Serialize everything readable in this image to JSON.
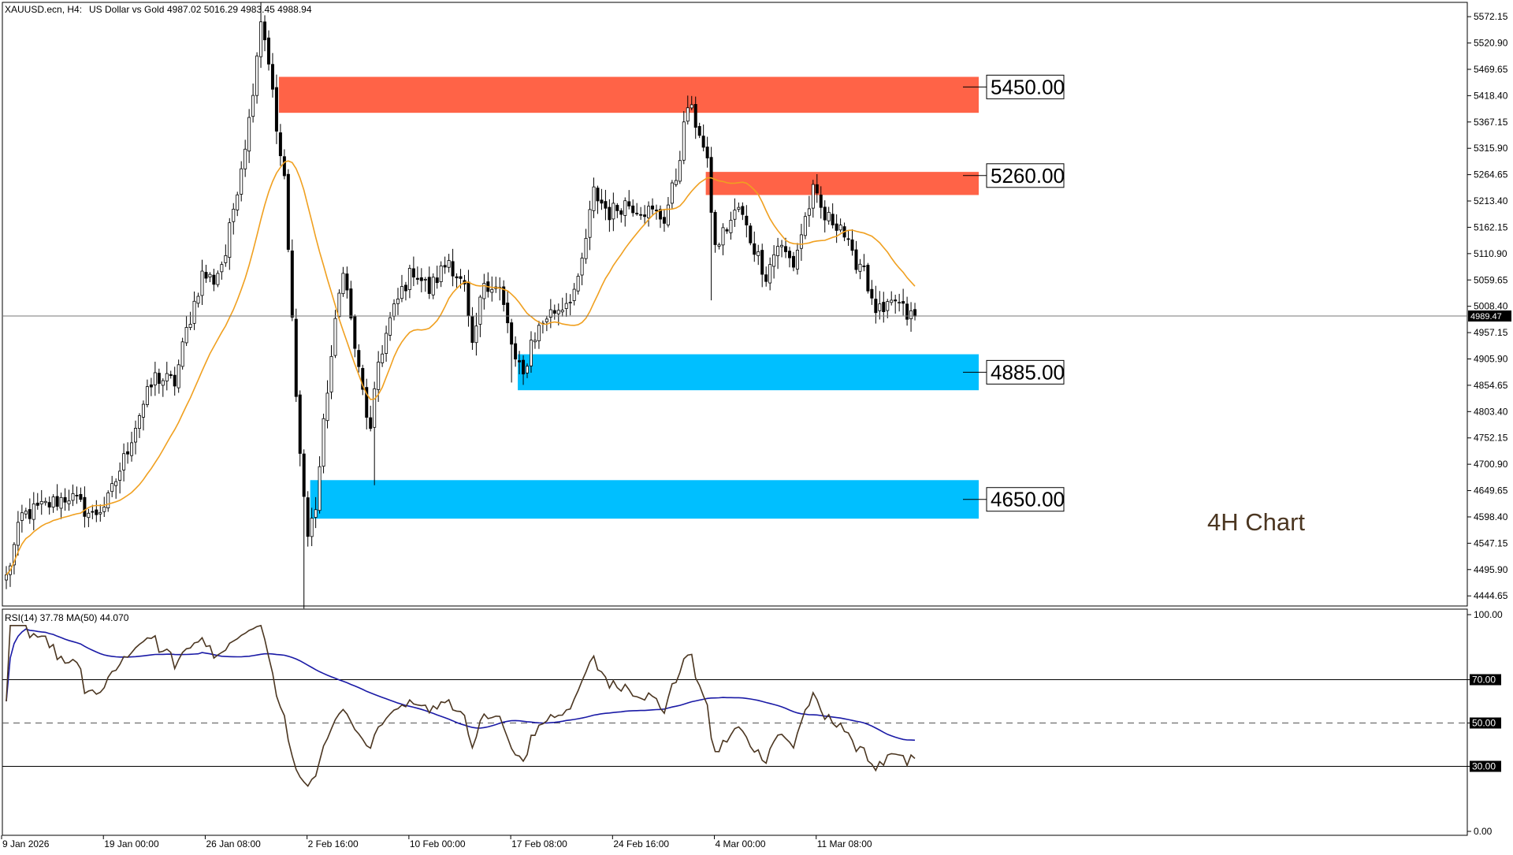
{
  "header": {
    "symbol": "XAUUSD.ecn, H4:",
    "description": "US Dollar vs Gold",
    "ohlc": "4987.02 5016.29 4983.45 4988.94"
  },
  "annotation": "4H Chart",
  "colors": {
    "bull_body": "#ffffff",
    "bear_body": "#000000",
    "ma_line": "#f0a020",
    "resistance_zone": "#ff6347",
    "support_zone": "#00bfff",
    "rsi_line": "#4b3621",
    "rsi_ma_line": "#1a1aa6"
  },
  "chart_data": [
    {
      "type": "candlestick",
      "title": "",
      "y_ticks": [
        "5572.15",
        "5520.90",
        "5469.65",
        "5418.40",
        "5367.15",
        "5315.90",
        "5264.65",
        "5213.40",
        "5162.15",
        "5110.90",
        "5059.65",
        "5008.40",
        "4957.15",
        "4905.90",
        "4854.65",
        "4803.40",
        "4752.15",
        "4700.90",
        "4649.65",
        "4598.40",
        "4547.15",
        "4495.90",
        "4444.65"
      ],
      "y_tick_values": [
        5572.15,
        5520.9,
        5469.65,
        5418.4,
        5367.15,
        5315.9,
        5264.65,
        5213.4,
        5162.15,
        5110.9,
        5059.65,
        5008.4,
        4957.15,
        4905.9,
        4854.65,
        4803.4,
        4752.15,
        4700.9,
        4649.65,
        4598.4,
        4547.15,
        4495.9,
        4444.65
      ],
      "ylim": [
        4425,
        5600
      ],
      "x_ticks": [
        "9 Jan 2026",
        "19 Jan 00:00",
        "26 Jan 08:00",
        "2 Feb 16:00",
        "10 Feb 00:00",
        "17 Feb 08:00",
        "24 Feb 16:00",
        "4 Mar 00:00",
        "11 Mar 08:00"
      ],
      "x_tick_index": [
        0,
        26,
        52,
        78,
        104,
        130,
        156,
        182,
        208
      ],
      "current_price": {
        "label": "4989.47",
        "value": 4989.47
      },
      "candle_count": 233,
      "moving_average_period": 20,
      "anchors": [
        [
          0,
          4480
        ],
        [
          4,
          4600
        ],
        [
          10,
          4620
        ],
        [
          16,
          4640
        ],
        [
          22,
          4600
        ],
        [
          26,
          4630
        ],
        [
          30,
          4710
        ],
        [
          34,
          4800
        ],
        [
          38,
          4870
        ],
        [
          43,
          4860
        ],
        [
          46,
          4960
        ],
        [
          50,
          5070
        ],
        [
          53,
          5060
        ],
        [
          56,
          5110
        ],
        [
          58,
          5200
        ],
        [
          62,
          5370
        ],
        [
          65,
          5570
        ],
        [
          67,
          5490
        ],
        [
          69,
          5350
        ],
        [
          71,
          5250
        ],
        [
          73,
          4980
        ],
        [
          75,
          4720
        ],
        [
          77,
          4560
        ],
        [
          79,
          4620
        ],
        [
          82,
          4850
        ],
        [
          86,
          5090
        ],
        [
          88,
          4980
        ],
        [
          90,
          4880
        ],
        [
          93,
          4760
        ],
        [
          95,
          4900
        ],
        [
          98,
          4980
        ],
        [
          101,
          5040
        ],
        [
          104,
          5080
        ],
        [
          108,
          5040
        ],
        [
          113,
          5100
        ],
        [
          117,
          5040
        ],
        [
          119,
          4920
        ],
        [
          122,
          5060
        ],
        [
          126,
          5040
        ],
        [
          130,
          4900
        ],
        [
          132,
          4870
        ],
        [
          134,
          4940
        ],
        [
          138,
          4990
        ],
        [
          142,
          5010
        ],
        [
          146,
          5050
        ],
        [
          150,
          5230
        ],
        [
          154,
          5190
        ],
        [
          158,
          5210
        ],
        [
          162,
          5200
        ],
        [
          168,
          5180
        ],
        [
          171,
          5260
        ],
        [
          174,
          5400
        ],
        [
          177,
          5350
        ],
        [
          179,
          5280
        ],
        [
          181,
          5120
        ],
        [
          183,
          5150
        ],
        [
          187,
          5200
        ],
        [
          190,
          5140
        ],
        [
          194,
          5070
        ],
        [
          197,
          5130
        ],
        [
          201,
          5090
        ],
        [
          204,
          5180
        ],
        [
          206,
          5230
        ],
        [
          209,
          5180
        ],
        [
          213,
          5170
        ],
        [
          216,
          5100
        ],
        [
          219,
          5090
        ],
        [
          221,
          5010
        ],
        [
          224,
          4990
        ],
        [
          227,
          5020
        ],
        [
          230,
          4990
        ],
        [
          232,
          4989
        ]
      ],
      "spikes": [
        {
          "i": 65,
          "value": 5600
        },
        {
          "i": 76,
          "value": 4420
        },
        {
          "i": 94,
          "value": 4660
        },
        {
          "i": 180,
          "value": 5020
        },
        {
          "i": 129,
          "value": 4860
        }
      ],
      "zones": [
        {
          "label": "5450.00",
          "from": 5385,
          "to": 5455,
          "color": "#ff6347",
          "start_index": 70
        },
        {
          "label": "5260.00",
          "from": 5225,
          "to": 5270,
          "color": "#ff6347",
          "start_index": 179
        },
        {
          "label": "4885.00",
          "from": 4845,
          "to": 4915,
          "color": "#00bfff",
          "start_index": 131
        },
        {
          "label": "4650.00",
          "from": 4595,
          "to": 4670,
          "color": "#00bfff",
          "start_index": 78
        }
      ]
    },
    {
      "type": "line",
      "title": "RSI(14) 37.78 MA(50) 44.070",
      "y_ticks": [
        "100.00",
        "70.00",
        "50.00",
        "30.00",
        "0.00"
      ],
      "y_tick_values": [
        100,
        70,
        50,
        30,
        0
      ],
      "ylim": [
        0,
        100
      ],
      "levels": [
        {
          "value": 70,
          "style": "solid"
        },
        {
          "value": 50,
          "style": "dashed"
        },
        {
          "value": 30,
          "style": "solid"
        }
      ],
      "series": [
        {
          "name": "RSI(14)",
          "last": 37.78
        },
        {
          "name": "MA(50)",
          "last": 44.07
        }
      ]
    }
  ]
}
